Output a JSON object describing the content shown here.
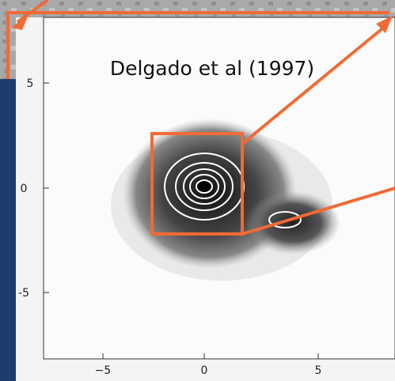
{
  "annotation": "Delgado et al (1997)",
  "y_axis": {
    "ticks": [
      "5",
      "0",
      "-5"
    ]
  },
  "x_axis": {
    "ticks": [
      "−5",
      "0",
      "5"
    ]
  }
}
